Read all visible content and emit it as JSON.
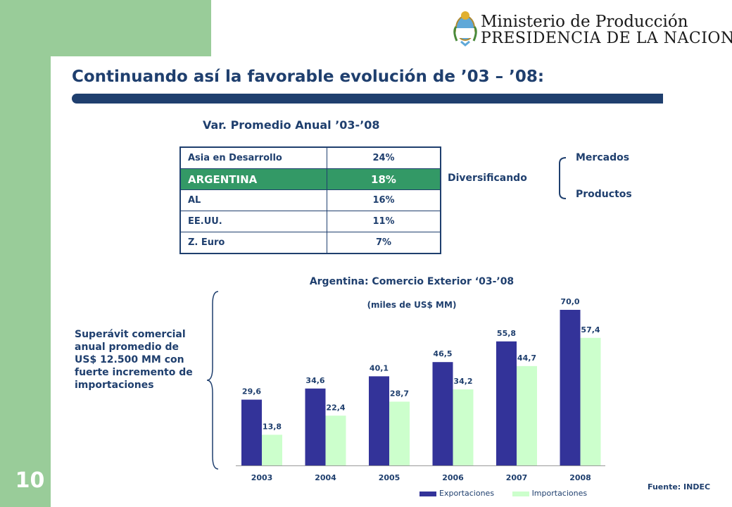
{
  "page_number": "10",
  "header": {
    "ministry_line1": "Ministerio de Producción",
    "ministry_line2": "PRESIDENCIA DE LA NACION"
  },
  "title": "Continuando así la favorable evolución de ’03 – ’08:",
  "var_table": {
    "title": "Var. Promedio Anual ’03-’08",
    "rows": [
      {
        "name": "Asia en Desarrollo",
        "value": "24%"
      },
      {
        "name": "ARGENTINA",
        "value": "18%"
      },
      {
        "name": "AL",
        "value": "16%"
      },
      {
        "name": "EE.UU.",
        "value": "11%"
      },
      {
        "name": "Z. Euro",
        "value": "7%"
      }
    ]
  },
  "diversificando": {
    "label": "Diversificando",
    "items": [
      "Mercados",
      "Productos"
    ]
  },
  "superavit_text": "Superávit comercial anual promedio de US$ 12.500 MM con fuerte incremento de importaciones",
  "source": "Fuente: INDEC",
  "colors": {
    "exportaciones": "#333399",
    "importaciones": "#ccffcc",
    "accent": "#1f3f6e",
    "highlight": "#339966"
  },
  "chart_data": {
    "type": "bar",
    "title": "Argentina: Comercio Exterior ‘03-’08",
    "subtitle": "(miles de US$ MM)",
    "categories": [
      "2003",
      "2004",
      "2005",
      "2006",
      "2007",
      "2008"
    ],
    "series": [
      {
        "name": "Exportaciones",
        "values": [
          29.6,
          34.6,
          40.1,
          46.5,
          55.8,
          70.0
        ],
        "labels": [
          "29,6",
          "34,6",
          "40,1",
          "46,5",
          "55,8",
          "70,0"
        ]
      },
      {
        "name": "Importaciones",
        "values": [
          13.8,
          22.4,
          28.7,
          34.2,
          44.7,
          57.4
        ],
        "labels": [
          "13,8",
          "22,4",
          "28,7",
          "34,2",
          "44,7",
          "57,4"
        ]
      }
    ],
    "ylim": [
      0,
      70
    ],
    "legend": "bottom"
  }
}
